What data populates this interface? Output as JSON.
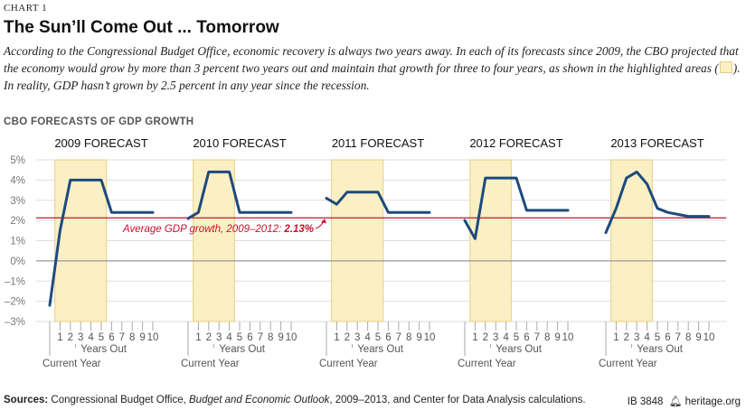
{
  "header": {
    "chart_number": "CHART 1",
    "title": "The Sun’ll Come Out ... Tomorrow",
    "subtitle_part1": "According to the Congressional Budget Office, economic recovery is always two years away. In each of its forecasts since 2009, the CBO projected that the economy would grow by more than 3 percent two years out and maintain that growth for three to four years, as shown in the highlighted areas (",
    "subtitle_part2": "). In reality, GDP hasn’t grown by 2.5 percent in any year since the recession.",
    "section_label": "CBO FORECASTS OF GDP GROWTH"
  },
  "footer": {
    "sources_label": "Sources:",
    "sources_text_1": " Congressional Budget Office, ",
    "sources_text_italic": "Budget and Economic Outlook",
    "sources_text_2": ", 2009–2013, and Center for Data Analysis calculations.",
    "ib_number": "IB 3848",
    "site": "heritage.org",
    "logo_icon": "bell-icon"
  },
  "colors": {
    "line": "#1d4a7e",
    "highlight": "#fbf0c4",
    "highlight_border": "#e3cf83",
    "reference_line": "#c8102e",
    "zero_line": "#999999",
    "grid": "#dddddd"
  },
  "chart_data": {
    "type": "line",
    "ylim": [
      -3,
      5
    ],
    "y_ticks": [
      "5%",
      "4%",
      "3%",
      "2%",
      "1%",
      "0%",
      "–1%",
      "–2%",
      "–3%"
    ],
    "x_ticks": [
      "",
      "1",
      "2",
      "3",
      "4",
      "5",
      "6",
      "7",
      "8",
      "9",
      "10"
    ],
    "x_axis_label": "Years Out",
    "current_year_label": "Current Year",
    "reference_line": {
      "value": 2.13,
      "label": "Average GDP growth, 2009–2012: ",
      "label_value": "2.13%"
    },
    "panels": [
      {
        "name": "2009 FORECAST",
        "values": [
          -2.2,
          1.5,
          4.0,
          4.0,
          4.0,
          4.0,
          2.4,
          2.4,
          2.4,
          2.4,
          2.4
        ],
        "highlight": [
          1,
          5
        ]
      },
      {
        "name": "2010 FORECAST",
        "values": [
          2.1,
          2.4,
          4.4,
          4.4,
          4.4,
          2.4,
          2.4,
          2.4,
          2.4,
          2.4,
          2.4
        ],
        "highlight": [
          1,
          4
        ]
      },
      {
        "name": "2011 FORECAST",
        "values": [
          3.1,
          2.8,
          3.4,
          3.4,
          3.4,
          3.4,
          2.4,
          2.4,
          2.4,
          2.4,
          2.4
        ],
        "highlight": [
          1,
          5
        ]
      },
      {
        "name": "2012 FORECAST",
        "values": [
          2.0,
          1.1,
          4.1,
          4.1,
          4.1,
          4.1,
          2.5,
          2.5,
          2.5,
          2.5,
          2.5
        ],
        "highlight": [
          1,
          4
        ]
      },
      {
        "name": "2013 FORECAST",
        "values": [
          1.4,
          2.6,
          4.1,
          4.4,
          3.8,
          2.6,
          2.4,
          2.3,
          2.2,
          2.2,
          2.2
        ],
        "highlight": [
          1,
          4
        ]
      }
    ]
  }
}
